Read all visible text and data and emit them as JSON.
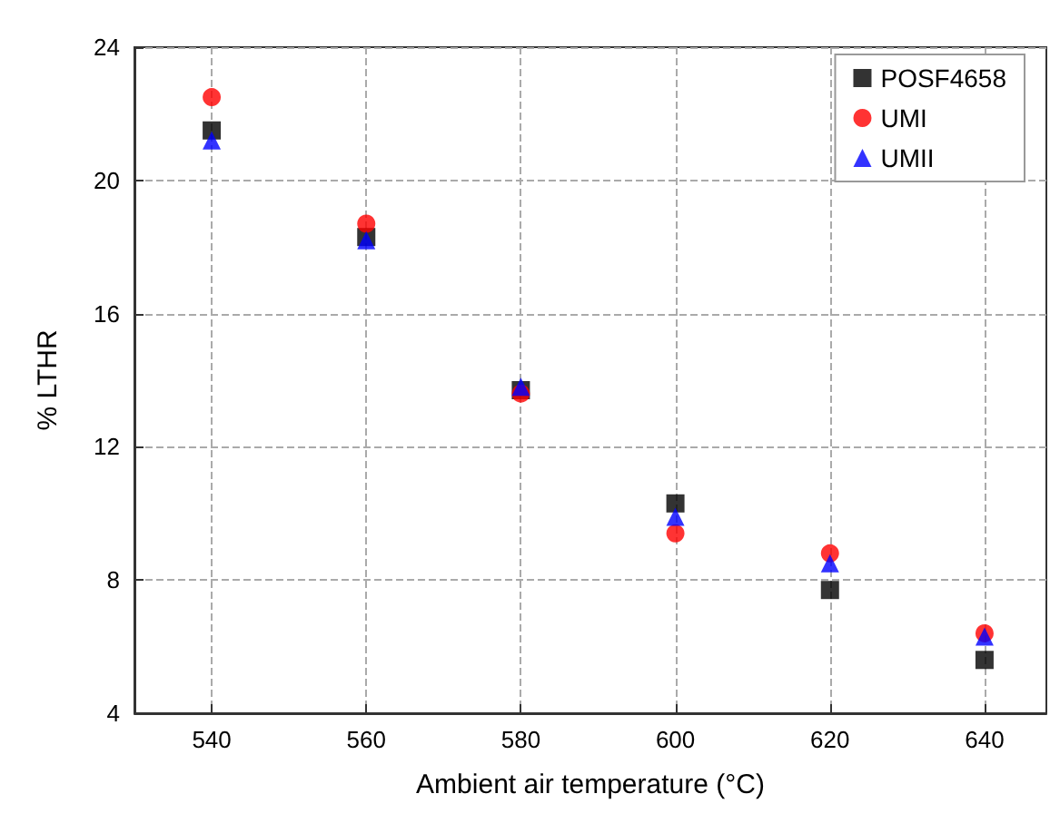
{
  "chart_data": {
    "type": "scatter",
    "xlabel": "Ambient air temperature (°C)",
    "ylabel": "% LTHR",
    "x": [
      540,
      560,
      580,
      600,
      620,
      640
    ],
    "xlim": [
      530,
      648
    ],
    "xticks": [
      540,
      560,
      580,
      600,
      620,
      640
    ],
    "ylim": [
      4,
      24
    ],
    "yticks": [
      4,
      8,
      12,
      16,
      20,
      24
    ],
    "grid": true,
    "legend": "top right",
    "series": [
      {
        "name": "POSF4658",
        "color": "#000000",
        "marker": "square",
        "values": [
          21.5,
          18.3,
          13.7,
          10.3,
          7.7,
          5.6
        ]
      },
      {
        "name": "UMI",
        "color": "#ff0000",
        "marker": "circle",
        "values": [
          22.5,
          18.7,
          13.6,
          9.4,
          8.8,
          6.4
        ]
      },
      {
        "name": "UMII",
        "color": "#0000ff",
        "marker": "triangle",
        "values": [
          21.2,
          18.2,
          13.8,
          9.9,
          8.5,
          6.3
        ]
      }
    ]
  }
}
